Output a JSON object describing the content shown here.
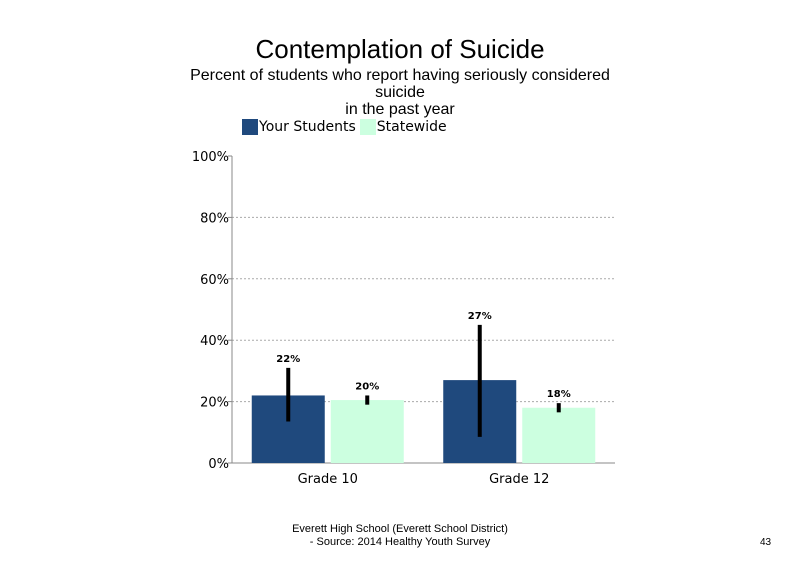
{
  "chart_data": {
    "type": "bar",
    "title": "Contemplation of Suicide",
    "subtitle_lines": [
      "Percent of students who report having seriously considered",
      "suicide",
      "in the past year"
    ],
    "categories": [
      "Grade 10",
      "Grade 12"
    ],
    "series": [
      {
        "name": "Your Students",
        "color": "#1f497d",
        "values": [
          22,
          27
        ],
        "labels": [
          "22%",
          "27%"
        ],
        "error_low": [
          13.5,
          8.5
        ],
        "error_high": [
          31,
          45
        ]
      },
      {
        "name": "Statewide",
        "color": "#ccffe0",
        "values": [
          20.5,
          18
        ],
        "labels": [
          "20%",
          "18%"
        ],
        "error_low": [
          19,
          16.5
        ],
        "error_high": [
          22,
          19.5
        ]
      }
    ],
    "ylim": [
      0,
      100
    ],
    "yticks": [
      0,
      20,
      40,
      60,
      80,
      100
    ],
    "ytick_labels": [
      "0%",
      "20%",
      "40%",
      "60%",
      "80%",
      "100%"
    ],
    "grid": true,
    "legend": "top-left"
  },
  "footer": {
    "line1": "Everett High School (Everett School District)",
    "line2": "- Source: 2014 Healthy Youth Survey"
  },
  "page_number": "43"
}
